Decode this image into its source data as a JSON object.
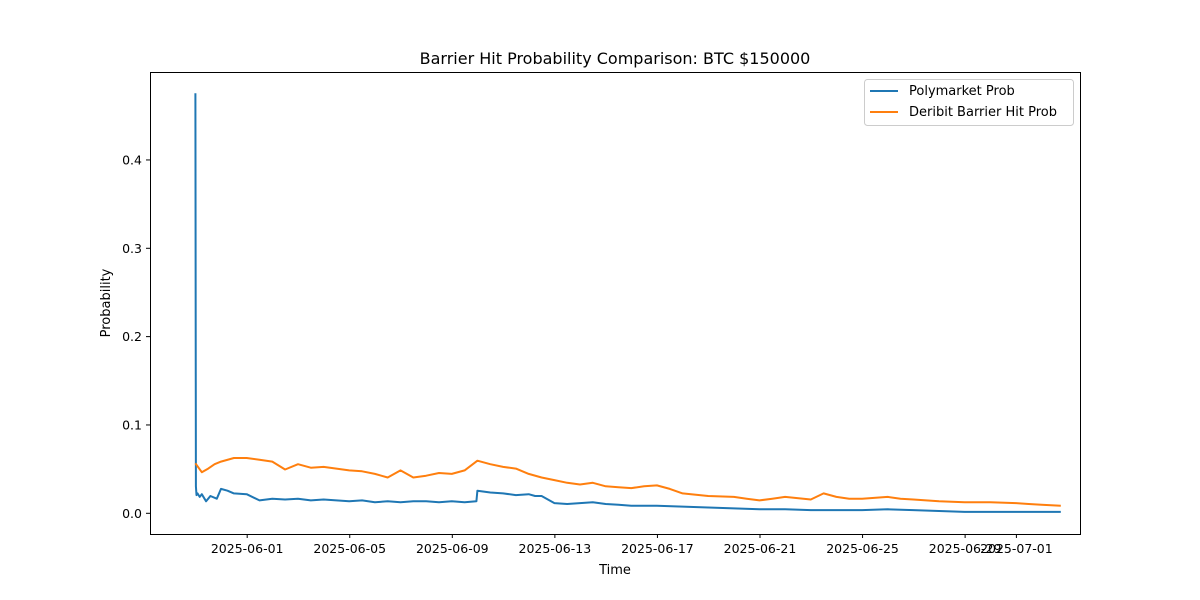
{
  "chart_data": {
    "type": "line",
    "title": "Barrier Hit Probability Comparison: BTC $150000",
    "xlabel": "Time",
    "ylabel": "Probability",
    "xlim": [
      "2025-05-28T05:30",
      "2025-07-03T12:00"
    ],
    "ylim": [
      -0.024,
      0.499
    ],
    "x_ticks": [
      "2025-06-01",
      "2025-06-05",
      "2025-06-09",
      "2025-06-13",
      "2025-06-17",
      "2025-06-21",
      "2025-06-25",
      "2025-06-29",
      "2025-07-01"
    ],
    "y_ticks": [
      0.0,
      0.1,
      0.2,
      0.3,
      0.4
    ],
    "y_tick_labels": [
      "0.0",
      "0.1",
      "0.2",
      "0.3",
      "0.4"
    ],
    "grid": false,
    "legend_position": "upper right",
    "series": [
      {
        "name": "Polymarket Prob",
        "color": "#1f77b4",
        "x": [
          "2025-05-30T00:00",
          "2025-05-30T00:30",
          "2025-05-30T01:00",
          "2025-05-30T02:00",
          "2025-05-30T04:00",
          "2025-05-30T06:00",
          "2025-05-30T10:00",
          "2025-05-30T14:00",
          "2025-05-30T20:00",
          "2025-05-31T00:00",
          "2025-05-31T06:00",
          "2025-05-31T12:00",
          "2025-06-01T00:00",
          "2025-06-01T12:00",
          "2025-06-02T00:00",
          "2025-06-02T12:00",
          "2025-06-03T00:00",
          "2025-06-03T12:00",
          "2025-06-04T00:00",
          "2025-06-04T12:00",
          "2025-06-05T00:00",
          "2025-06-05T12:00",
          "2025-06-06T00:00",
          "2025-06-06T12:00",
          "2025-06-07T00:00",
          "2025-06-07T12:00",
          "2025-06-08T00:00",
          "2025-06-08T12:00",
          "2025-06-09T00:00",
          "2025-06-09T12:00",
          "2025-06-09T23:00",
          "2025-06-10T00:00",
          "2025-06-10T12:00",
          "2025-06-11T00:00",
          "2025-06-11T12:00",
          "2025-06-12T00:00",
          "2025-06-12T06:00",
          "2025-06-12T12:00",
          "2025-06-13T00:00",
          "2025-06-13T12:00",
          "2025-06-14T00:00",
          "2025-06-14T12:00",
          "2025-06-15T00:00",
          "2025-06-15T12:00",
          "2025-06-16T00:00",
          "2025-06-17T00:00",
          "2025-06-18T00:00",
          "2025-06-19T00:00",
          "2025-06-20T00:00",
          "2025-06-21T00:00",
          "2025-06-22T00:00",
          "2025-06-23T00:00",
          "2025-06-24T00:00",
          "2025-06-25T00:00",
          "2025-06-26T00:00",
          "2025-06-27T00:00",
          "2025-06-28T00:00",
          "2025-06-29T00:00",
          "2025-06-30T00:00",
          "2025-07-01T00:00",
          "2025-07-02T00:00",
          "2025-07-02T18:00"
        ],
        "y": [
          0.475,
          0.03,
          0.02,
          0.022,
          0.018,
          0.021,
          0.013,
          0.019,
          0.016,
          0.027,
          0.025,
          0.022,
          0.021,
          0.014,
          0.016,
          0.015,
          0.016,
          0.014,
          0.015,
          0.014,
          0.013,
          0.014,
          0.012,
          0.013,
          0.012,
          0.013,
          0.013,
          0.012,
          0.013,
          0.012,
          0.013,
          0.025,
          0.023,
          0.022,
          0.02,
          0.021,
          0.019,
          0.019,
          0.011,
          0.01,
          0.011,
          0.012,
          0.01,
          0.009,
          0.008,
          0.008,
          0.007,
          0.006,
          0.005,
          0.004,
          0.004,
          0.003,
          0.003,
          0.003,
          0.004,
          0.003,
          0.002,
          0.001,
          0.001,
          0.001,
          0.001,
          0.001
        ]
      },
      {
        "name": "Deribit Barrier Hit Prob",
        "color": "#ff7f0e",
        "x": [
          "2025-05-30T00:00",
          "2025-05-30T06:00",
          "2025-05-30T12:00",
          "2025-05-30T18:00",
          "2025-05-31T00:00",
          "2025-05-31T12:00",
          "2025-06-01T00:00",
          "2025-06-01T12:00",
          "2025-06-02T00:00",
          "2025-06-02T12:00",
          "2025-06-03T00:00",
          "2025-06-03T12:00",
          "2025-06-04T00:00",
          "2025-06-04T12:00",
          "2025-06-05T00:00",
          "2025-06-05T12:00",
          "2025-06-06T00:00",
          "2025-06-06T12:00",
          "2025-06-07T00:00",
          "2025-06-07T12:00",
          "2025-06-08T00:00",
          "2025-06-08T12:00",
          "2025-06-09T00:00",
          "2025-06-09T12:00",
          "2025-06-10T00:00",
          "2025-06-10T12:00",
          "2025-06-11T00:00",
          "2025-06-11T12:00",
          "2025-06-12T00:00",
          "2025-06-12T12:00",
          "2025-06-13T00:00",
          "2025-06-13T12:00",
          "2025-06-14T00:00",
          "2025-06-14T12:00",
          "2025-06-15T00:00",
          "2025-06-15T12:00",
          "2025-06-16T00:00",
          "2025-06-16T12:00",
          "2025-06-17T00:00",
          "2025-06-17T12:00",
          "2025-06-18T00:00",
          "2025-06-19T00:00",
          "2025-06-20T00:00",
          "2025-06-20T12:00",
          "2025-06-21T00:00",
          "2025-06-21T12:00",
          "2025-06-22T00:00",
          "2025-06-23T00:00",
          "2025-06-23T12:00",
          "2025-06-24T00:00",
          "2025-06-24T12:00",
          "2025-06-25T00:00",
          "2025-06-26T00:00",
          "2025-06-26T12:00",
          "2025-06-27T00:00",
          "2025-06-28T00:00",
          "2025-06-29T00:00",
          "2025-06-30T00:00",
          "2025-07-01T00:00",
          "2025-07-01T12:00",
          "2025-07-02T00:00",
          "2025-07-02T18:00"
        ],
        "y": [
          0.056,
          0.046,
          0.05,
          0.055,
          0.058,
          0.062,
          0.062,
          0.06,
          0.058,
          0.049,
          0.055,
          0.051,
          0.052,
          0.05,
          0.048,
          0.047,
          0.044,
          0.04,
          0.048,
          0.04,
          0.042,
          0.045,
          0.044,
          0.048,
          0.059,
          0.055,
          0.052,
          0.05,
          0.044,
          0.04,
          0.037,
          0.034,
          0.032,
          0.034,
          0.03,
          0.029,
          0.028,
          0.03,
          0.031,
          0.027,
          0.022,
          0.019,
          0.018,
          0.016,
          0.014,
          0.016,
          0.018,
          0.015,
          0.022,
          0.018,
          0.016,
          0.016,
          0.018,
          0.016,
          0.015,
          0.013,
          0.012,
          0.012,
          0.011,
          0.01,
          0.009,
          0.008
        ]
      }
    ]
  }
}
